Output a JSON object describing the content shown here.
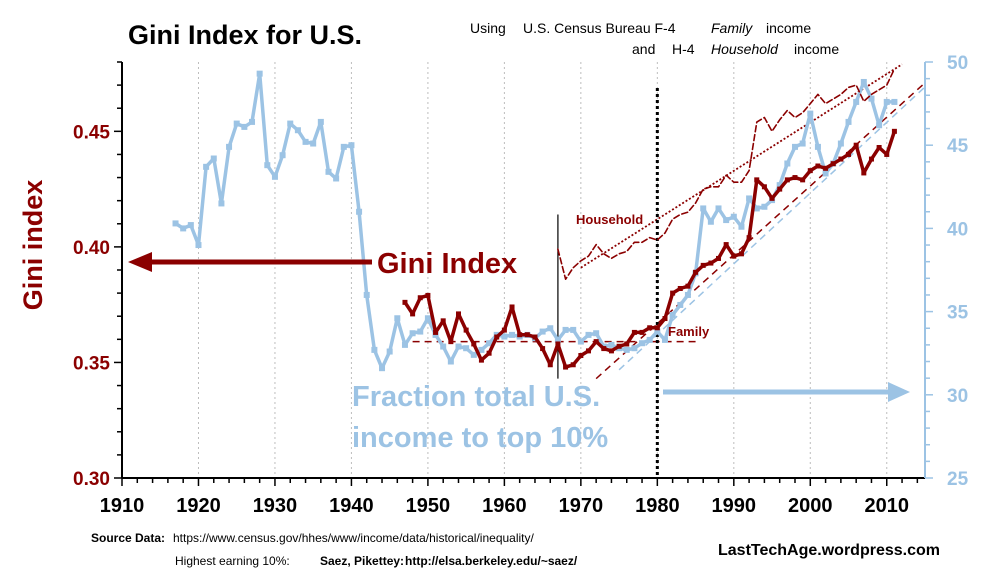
{
  "title": "Gini Index for U.S.",
  "subtitle_line1": {
    "using": "Using",
    "text": "U.S. Census Bureau  F-4",
    "em": "Family",
    "tail": "income"
  },
  "subtitle_line2": {
    "and": "and",
    "code": "H-4",
    "em": "Household",
    "tail": "income"
  },
  "source": {
    "label": "Source Data:",
    "url": "https://www.census.gov/hhes/www/income/data/historical/inequality/",
    "line2_prefix": "Highest earning 10%:",
    "line2_authors": "Saez, Pikettey:",
    "line2_url": "http://elsa.berkeley.edu/~saez/"
  },
  "credit": "LastTechAge.wordpress.com",
  "colors": {
    "gini": "#8b0000",
    "top10": "#9cc3e4",
    "axis": "#000000"
  },
  "chart_data": {
    "type": "line",
    "title": "Gini Index for U.S.",
    "xlabel": "",
    "ylabel": "Gini index",
    "xlim": [
      1910,
      2015
    ],
    "x_ticks": [
      1910,
      1920,
      1930,
      1940,
      1950,
      1960,
      1970,
      1980,
      1990,
      2000,
      2010
    ],
    "ylim_left": [
      0.3,
      0.48
    ],
    "left_ticks": [
      "0.30",
      "0.35",
      "0.40",
      "0.45"
    ],
    "ylim_right": [
      25,
      50
    ],
    "right_ticks": [
      "25",
      "30",
      "35",
      "40",
      "45",
      "50"
    ],
    "annotations": {
      "gini_index": "Gini Index",
      "household": "Household",
      "family": "Family",
      "fraction_line1": "Fraction total U.S.",
      "fraction_line2": "income to top 10%"
    },
    "series": [
      {
        "name": "Top 10% income share (%)",
        "axis": "right",
        "x": [
          1917,
          1918,
          1919,
          1920,
          1921,
          1922,
          1923,
          1924,
          1925,
          1926,
          1927,
          1928,
          1929,
          1930,
          1931,
          1932,
          1933,
          1934,
          1935,
          1936,
          1937,
          1938,
          1939,
          1940,
          1941,
          1942,
          1943,
          1944,
          1945,
          1946,
          1947,
          1948,
          1949,
          1950,
          1951,
          1952,
          1953,
          1954,
          1955,
          1956,
          1957,
          1958,
          1959,
          1960,
          1961,
          1962,
          1963,
          1964,
          1965,
          1966,
          1967,
          1968,
          1969,
          1970,
          1971,
          1972,
          1973,
          1974,
          1975,
          1976,
          1977,
          1978,
          1979,
          1980,
          1981,
          1982,
          1983,
          1984,
          1985,
          1986,
          1987,
          1988,
          1989,
          1990,
          1991,
          1992,
          1993,
          1994,
          1995,
          1996,
          1997,
          1998,
          1999,
          2000,
          2001,
          2002,
          2003,
          2004,
          2005,
          2006,
          2007,
          2008,
          2009,
          2010,
          2011
        ],
        "values": [
          40.3,
          40.0,
          40.2,
          39.0,
          43.7,
          44.2,
          41.5,
          44.9,
          46.3,
          46.1,
          46.4,
          49.3,
          43.8,
          43.1,
          44.4,
          46.3,
          45.9,
          45.2,
          45.1,
          46.4,
          43.4,
          43.0,
          44.9,
          45.0,
          41.0,
          36.0,
          32.7,
          31.6,
          32.6,
          34.6,
          33.0,
          33.7,
          33.8,
          34.6,
          33.6,
          32.9,
          32.0,
          32.9,
          32.8,
          32.4,
          32.7,
          33.1,
          33.6,
          33.5,
          33.6,
          33.5,
          33.6,
          33.4,
          33.8,
          34.0,
          33.3,
          33.9,
          33.9,
          33.2,
          33.6,
          33.7,
          32.9,
          33.0,
          32.8,
          32.7,
          32.8,
          33.1,
          33.3,
          33.8,
          33.3,
          34.8,
          35.4,
          36.0,
          37.3,
          41.2,
          40.4,
          41.2,
          40.5,
          40.7,
          40.1,
          41.8,
          41.2,
          41.3,
          41.7,
          42.6,
          43.9,
          44.9,
          45.1,
          46.9,
          44.9,
          43.3,
          43.9,
          45.1,
          46.4,
          47.6,
          48.8,
          47.8,
          46.2,
          47.6,
          47.6
        ]
      },
      {
        "name": "Gini index (Family, F-4)",
        "axis": "left",
        "x": [
          1947,
          1948,
          1949,
          1950,
          1951,
          1952,
          1953,
          1954,
          1955,
          1956,
          1957,
          1958,
          1959,
          1960,
          1961,
          1962,
          1963,
          1964,
          1965,
          1966,
          1967,
          1968,
          1969,
          1970,
          1971,
          1972,
          1973,
          1974,
          1975,
          1976,
          1977,
          1978,
          1979,
          1980,
          1981,
          1982,
          1983,
          1984,
          1985,
          1986,
          1987,
          1988,
          1989,
          1990,
          1991,
          1992,
          1993,
          1994,
          1995,
          1996,
          1997,
          1998,
          1999,
          2000,
          2001,
          2002,
          2003,
          2004,
          2005,
          2006,
          2007,
          2008,
          2009,
          2010,
          2011
        ],
        "values": [
          0.376,
          0.371,
          0.378,
          0.379,
          0.363,
          0.368,
          0.359,
          0.371,
          0.364,
          0.358,
          0.351,
          0.354,
          0.361,
          0.364,
          0.374,
          0.362,
          0.362,
          0.361,
          0.356,
          0.349,
          0.358,
          0.348,
          0.349,
          0.353,
          0.355,
          0.359,
          0.356,
          0.355,
          0.357,
          0.358,
          0.363,
          0.363,
          0.365,
          0.365,
          0.369,
          0.38,
          0.382,
          0.383,
          0.389,
          0.392,
          0.393,
          0.395,
          0.401,
          0.396,
          0.397,
          0.404,
          0.429,
          0.426,
          0.421,
          0.425,
          0.429,
          0.43,
          0.429,
          0.433,
          0.435,
          0.434,
          0.436,
          0.438,
          0.44,
          0.444,
          0.432,
          0.438,
          0.443,
          0.44,
          0.45
        ]
      },
      {
        "name": "Gini index (Household, H-4)",
        "axis": "left",
        "x": [
          1967,
          1968,
          1969,
          1970,
          1971,
          1972,
          1973,
          1974,
          1975,
          1976,
          1977,
          1978,
          1979,
          1980,
          1981,
          1982,
          1983,
          1984,
          1985,
          1986,
          1987,
          1988,
          1989,
          1990,
          1991,
          1992,
          1993,
          1994,
          1995,
          1996,
          1997,
          1998,
          1999,
          2000,
          2001,
          2002,
          2003,
          2004,
          2005,
          2006,
          2007,
          2008,
          2009,
          2010,
          2011
        ],
        "values": [
          0.399,
          0.386,
          0.391,
          0.394,
          0.396,
          0.401,
          0.397,
          0.395,
          0.397,
          0.398,
          0.402,
          0.402,
          0.404,
          0.403,
          0.406,
          0.412,
          0.414,
          0.415,
          0.419,
          0.425,
          0.426,
          0.426,
          0.431,
          0.428,
          0.428,
          0.433,
          0.454,
          0.456,
          0.45,
          0.455,
          0.459,
          0.456,
          0.458,
          0.462,
          0.466,
          0.462,
          0.464,
          0.466,
          0.469,
          0.47,
          0.463,
          0.466,
          0.468,
          0.47,
          0.477
        ]
      }
    ],
    "trend_lines": [
      {
        "name": "Family pre-1980 trend (flat)",
        "style": "dashed",
        "x": [
          1948,
          1985
        ],
        "values": [
          0.359,
          0.359
        ]
      },
      {
        "name": "Family post-1980 trend",
        "style": "dashed",
        "x": [
          1972,
          2015
        ],
        "values": [
          0.343,
          0.471
        ]
      },
      {
        "name": "Household post-1980 trend",
        "style": "dotted",
        "x": [
          1970,
          2012
        ],
        "values": [
          0.391,
          0.479
        ]
      },
      {
        "name": "Top 10% post-1980 trend",
        "style": "dashed-light",
        "x": [
          1975,
          2015
        ],
        "values": [
          31.5,
          48.5
        ]
      }
    ],
    "markers": [
      {
        "name": "1980 divider",
        "style": "dotted-vertical",
        "x": 1980
      },
      {
        "name": "1967 household start",
        "style": "solid-vertical",
        "x": 1967,
        "range": [
          0.343,
          0.414
        ]
      }
    ]
  }
}
